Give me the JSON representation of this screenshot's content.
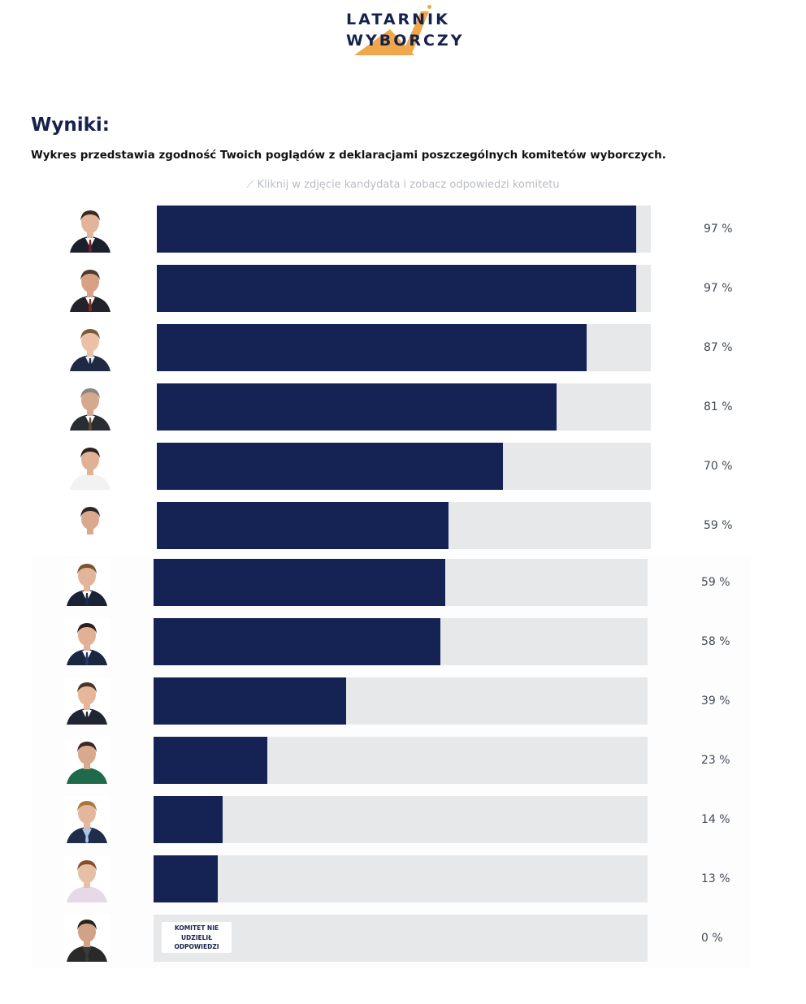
{
  "logo": {
    "line1": "LATARNIK",
    "line2": "WYBORCZY",
    "accent_color": "#f0a64a",
    "brand_color": "#15224d"
  },
  "results": {
    "title": "Wyniki:",
    "description": "Wykres przedstawia zgodność Twoich poglądów z deklaracjami poszczególnych komitetów wyborczych.",
    "hint": "Kliknij w zdjęcie kandydata i zobacz odpowiedzi komitetu",
    "hint_icon": "pointer-icon"
  },
  "colors": {
    "bar_fill": "#142254",
    "bar_track": "#e6e8ea",
    "percent_text": "#444a55"
  },
  "candidates": [
    {
      "value": 97,
      "label": "97 %",
      "bg": "#dfe3ea",
      "suit": "#1a1f2c",
      "skin": "#e2b49a",
      "hair": "#3a2a22",
      "shirt": "#ffffff",
      "tie": "#7a1f2a"
    },
    {
      "value": 97,
      "label": "97 %",
      "bg": "#e6e6e6",
      "suit": "#22232a",
      "skin": "#d9a184",
      "hair": "#4a3a30",
      "shirt": "#ffffff",
      "tie": "#8a2a1a"
    },
    {
      "value": 87,
      "label": "87 %",
      "bg": "#ececec",
      "suit": "#1e2a44",
      "skin": "#ebc0a6",
      "hair": "#7a5a36",
      "shirt": "#e9eef6",
      "tie": "#1e2a44"
    },
    {
      "value": 81,
      "label": "81 %",
      "bg": "#ebebeb",
      "suit": "#2a2c33",
      "skin": "#d7a98c",
      "hair": "#8b8680",
      "shirt": "#ffffff",
      "tie": "#6a4a2a"
    },
    {
      "value": 70,
      "label": "70 %",
      "bg": "#ededed",
      "suit": "#f2f2f2",
      "skin": "#e0b196",
      "hair": "#2a2320",
      "shirt": "#f2f2f2",
      "tie": "#f2f2f2"
    },
    {
      "value": 59,
      "label": "59 %",
      "bg": "#ececec",
      "suit": "#ffffff",
      "skin": "#d9a98e",
      "hair": "#2e2622",
      "shirt": "#ffffff",
      "tie": "#ffffff"
    },
    {
      "value": 59,
      "label": "59 %",
      "bg": "#ececec",
      "suit": "#1a2238",
      "skin": "#e3b39a",
      "hair": "#7a5330",
      "shirt": "#ffffff",
      "tie": "#1d2a4f"
    },
    {
      "value": 58,
      "label": "58 %",
      "bg": "#ededed",
      "suit": "#1b2640",
      "skin": "#e2b095",
      "hair": "#2a211c",
      "shirt": "#ffffff",
      "tie": "#283a66"
    },
    {
      "value": 39,
      "label": "39 %",
      "bg": "#ececec",
      "suit": "#202433",
      "skin": "#e6b69b",
      "hair": "#4a3626",
      "shirt": "#ffffff",
      "tie": "#202433"
    },
    {
      "value": 23,
      "label": "23 %",
      "bg": "#eaeaea",
      "suit": "#1f6a4a",
      "skin": "#d9a98e",
      "hair": "#3a2622",
      "shirt": "#1f6a4a",
      "tie": "#1f6a4a"
    },
    {
      "value": 14,
      "label": "14 %",
      "bg": "#ececec",
      "suit": "#1d2d4a",
      "skin": "#e4b79c",
      "hair": "#a8773e",
      "shirt": "#aac6e4",
      "tie": "#aac6e4"
    },
    {
      "value": 13,
      "label": "13 %",
      "bg": "#ededed",
      "suit": "#e6d8e6",
      "skin": "#e7bfa6",
      "hair": "#8a4e2e",
      "shirt": "#e6d8e6",
      "tie": "#e6d8e6"
    },
    {
      "value": 0,
      "label": "0 %",
      "no_answer": "KOMITET NIE UDZIELIŁ ODPOWIEDZI",
      "bg": "#ececec",
      "suit": "#2a2a2a",
      "skin": "#d2a286",
      "hair": "#2a221e",
      "shirt": "#3a3a3a",
      "tie": "#3a3a3a"
    }
  ]
}
